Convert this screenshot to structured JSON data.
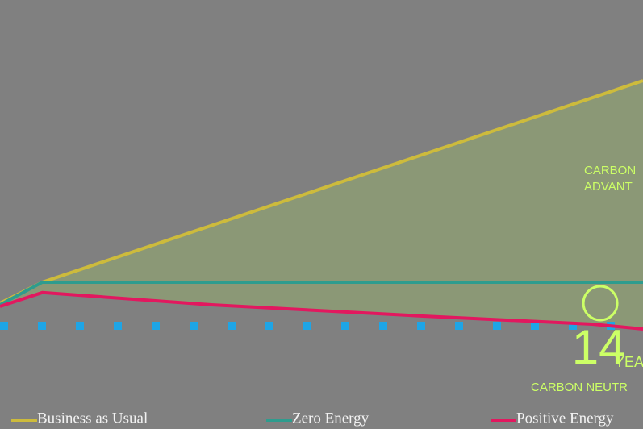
{
  "chart_data": {
    "type": "line",
    "x": [
      0,
      1,
      5,
      10,
      14,
      15.2
    ],
    "xlim": [
      0,
      15.2
    ],
    "ylim": [
      -3,
      10.1
    ],
    "series": [
      {
        "name": "Business as Usual",
        "color": "#cdbb3c",
        "values": [
          0.7,
          1.35,
          3.11,
          5.31,
          7.07,
          7.6
        ]
      },
      {
        "name": "Zero Energy",
        "color": "#2e9c8e",
        "values": [
          0.65,
          1.35,
          1.35,
          1.35,
          1.35,
          1.35
        ]
      },
      {
        "name": "Positive Energy",
        "color": "#e2185f",
        "values": [
          0.6,
          1.03,
          0.65,
          0.3,
          0.05,
          -0.1
        ]
      }
    ],
    "baseline": 0,
    "baseline_color": "#1ea5e6",
    "area_color": "#a6d060",
    "annotations": {
      "advantage_1": "CARBON",
      "advantage_2": "ADVANT",
      "crossover_year": 14,
      "years_word": "YEA",
      "neutral": "CARBON NEUTR",
      "color": "#ccff66"
    }
  }
}
